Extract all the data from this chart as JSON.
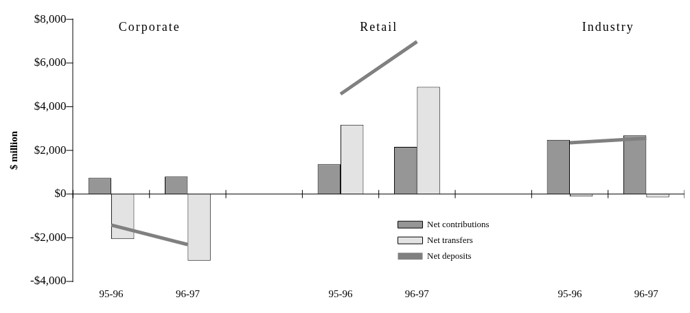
{
  "chart_data": {
    "type": "bar",
    "categories": [
      "95-96",
      "96-97",
      null,
      "95-96",
      "96-97",
      null,
      "95-96",
      "96-97"
    ],
    "ylabel": "$ million",
    "ylim": [
      -4000,
      8000
    ],
    "yticks": [
      {
        "value": -4000,
        "label": "-$4,000"
      },
      {
        "value": -2000,
        "label": "-$2,000"
      },
      {
        "value": 0,
        "label": "$0"
      },
      {
        "value": 2000,
        "label": "$2,000"
      },
      {
        "value": 4000,
        "label": "$4,000"
      },
      {
        "value": 6000,
        "label": "$6,000"
      },
      {
        "value": 8000,
        "label": "$8,000"
      }
    ],
    "series": [
      {
        "name": "Net contributions",
        "color": "#969696",
        "values": [
          740,
          800,
          null,
          1370,
          2160,
          null,
          2480,
          2690
        ]
      },
      {
        "name": "Net transfers",
        "color": "#e3e3e3",
        "values": [
          -2060,
          -3050,
          null,
          3170,
          4910,
          null,
          -110,
          -150
        ]
      },
      {
        "name": "Net deposits",
        "type": "line",
        "color": "#808080",
        "values": [
          -1420,
          -2310,
          null,
          4580,
          6980,
          null,
          2350,
          2550
        ]
      }
    ],
    "annotations": [
      "Corporate",
      "Retail",
      "Industry"
    ],
    "ref_lines": [
      {
        "axis": "y",
        "value": 0,
        "color": "#000000"
      }
    ],
    "grid": false,
    "legend": "bottom right"
  }
}
